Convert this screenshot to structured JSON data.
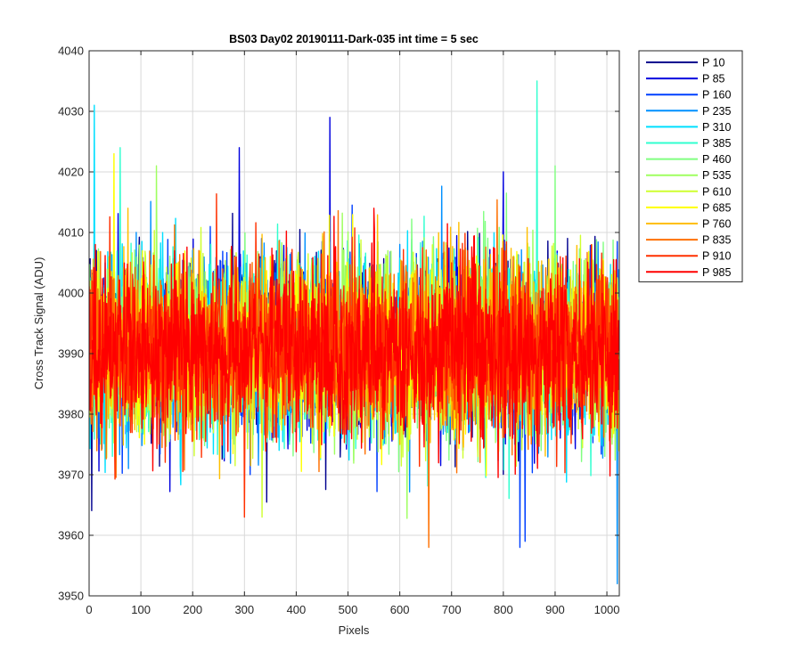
{
  "chart_data": {
    "type": "line",
    "title": "BS03 Day02 20190111-Dark-035 int time = 5 sec",
    "xlabel": "Pixels",
    "ylabel": "Cross Track Signal (ADU)",
    "xlim": [
      0,
      1024
    ],
    "ylim": [
      3950,
      4040
    ],
    "xticks": [
      0,
      100,
      200,
      300,
      400,
      500,
      600,
      700,
      800,
      900,
      1000
    ],
    "yticks": [
      3950,
      3960,
      3970,
      3980,
      3990,
      4000,
      4010,
      4020,
      4030,
      4040
    ],
    "grid": true,
    "legend_position": "outside-top-right",
    "noise_model": {
      "n_points": 1024,
      "mean": 3991,
      "std": 7,
      "min_observed": 3952,
      "max_observed": 4035
    },
    "series": [
      {
        "name": "P 10",
        "color": "#00008f",
        "spikes": [
          [
            330,
            4006
          ]
        ]
      },
      {
        "name": "P 85",
        "color": "#0000df",
        "spikes": [
          [
            465,
            4029
          ],
          [
            800,
            4020
          ],
          [
            290,
            4024
          ]
        ]
      },
      {
        "name": "P 160",
        "color": "#0040ff",
        "spikes": [
          [
            842,
            3959
          ]
        ]
      },
      {
        "name": "P 235",
        "color": "#0090ff",
        "spikes": [
          [
            1020,
            3952
          ]
        ]
      },
      {
        "name": "P 310",
        "color": "#00dfff",
        "spikes": [
          [
            10,
            4031
          ]
        ]
      },
      {
        "name": "P 385",
        "color": "#30ffcf",
        "spikes": [
          [
            865,
            4035
          ],
          [
            60,
            4024
          ]
        ]
      },
      {
        "name": "P 460",
        "color": "#80ff80",
        "spikes": [
          [
            900,
            4021
          ]
        ]
      },
      {
        "name": "P 535",
        "color": "#9fff60",
        "spikes": [
          [
            130,
            4021
          ]
        ]
      },
      {
        "name": "P 610",
        "color": "#cfff30",
        "spikes": [
          [
            334,
            3963
          ]
        ]
      },
      {
        "name": "P 685",
        "color": "#ffff00",
        "spikes": [
          [
            48,
            4023
          ]
        ]
      },
      {
        "name": "P 760",
        "color": "#ffbf00",
        "spikes": [
          [
            600,
            3975
          ]
        ]
      },
      {
        "name": "P 835",
        "color": "#ff7000",
        "spikes": [
          [
            656,
            3958
          ]
        ]
      },
      {
        "name": "P 910",
        "color": "#ff3000",
        "spikes": [
          [
            300,
            3963
          ]
        ]
      },
      {
        "name": "P 985",
        "color": "#ff0000",
        "spikes": [
          [
            550,
            4014
          ]
        ]
      }
    ]
  }
}
